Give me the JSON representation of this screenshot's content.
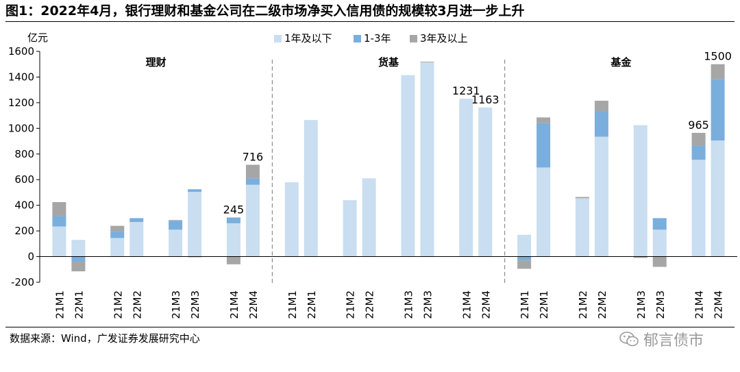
{
  "figure": {
    "title": "图1：2022年4月，银行理财和基金公司在二级市场净买入信用债的规模较3月进一步上升",
    "source": "数据来源：Wind，广发证券发展研究中心",
    "watermark": "郁言债市"
  },
  "chart_data": {
    "type": "bar",
    "stacked": true,
    "title": "2022年4月，银行理财和基金公司在二级市场净买入信用债的规模较3月进一步上升",
    "ylabel": "亿元",
    "ylim": [
      -200,
      1600
    ],
    "yticks": [
      -200,
      0,
      200,
      400,
      600,
      800,
      1000,
      1200,
      1400,
      1600
    ],
    "legend_position": "top-right",
    "groups": [
      "理财",
      "货基",
      "基金"
    ],
    "categories": [
      "21M1",
      "22M1",
      "21M2",
      "22M2",
      "21M3",
      "22M3",
      "21M4",
      "22M4"
    ],
    "series": [
      {
        "name": "1年及以下",
        "color": "#c9def0",
        "values": [
          [
            235,
            130,
            145,
            270,
            210,
            505,
            260,
            560
          ],
          [
            580,
            1065,
            440,
            610,
            1415,
            1515,
            1231,
            1163
          ],
          [
            170,
            695,
            455,
            935,
            1025,
            210,
            755,
            905
          ]
        ]
      },
      {
        "name": "1-3年",
        "color": "#7aaedd",
        "values": [
          [
            80,
            -40,
            55,
            30,
            70,
            20,
            45,
            50
          ],
          [
            0,
            0,
            0,
            0,
            0,
            0,
            0,
            0
          ],
          [
            -30,
            345,
            0,
            200,
            0,
            90,
            110,
            480
          ]
        ]
      },
      {
        "name": "3年及以上",
        "color": "#a6a6a6",
        "values": [
          [
            110,
            -75,
            40,
            0,
            5,
            -5,
            -60,
            106
          ],
          [
            0,
            0,
            0,
            0,
            0,
            5,
            0,
            0
          ],
          [
            -65,
            45,
            10,
            80,
            -10,
            -80,
            100,
            115
          ]
        ]
      }
    ],
    "data_labels": [
      {
        "group": "理财",
        "category": "21M4",
        "text": "245"
      },
      {
        "group": "理财",
        "category": "22M4",
        "text": "716"
      },
      {
        "group": "货基",
        "category": "21M4",
        "text": "1231"
      },
      {
        "group": "货基",
        "category": "22M4",
        "text": "1163"
      },
      {
        "group": "基金",
        "category": "21M4",
        "text": "965"
      },
      {
        "group": "基金",
        "category": "22M4",
        "text": "1500"
      }
    ]
  }
}
